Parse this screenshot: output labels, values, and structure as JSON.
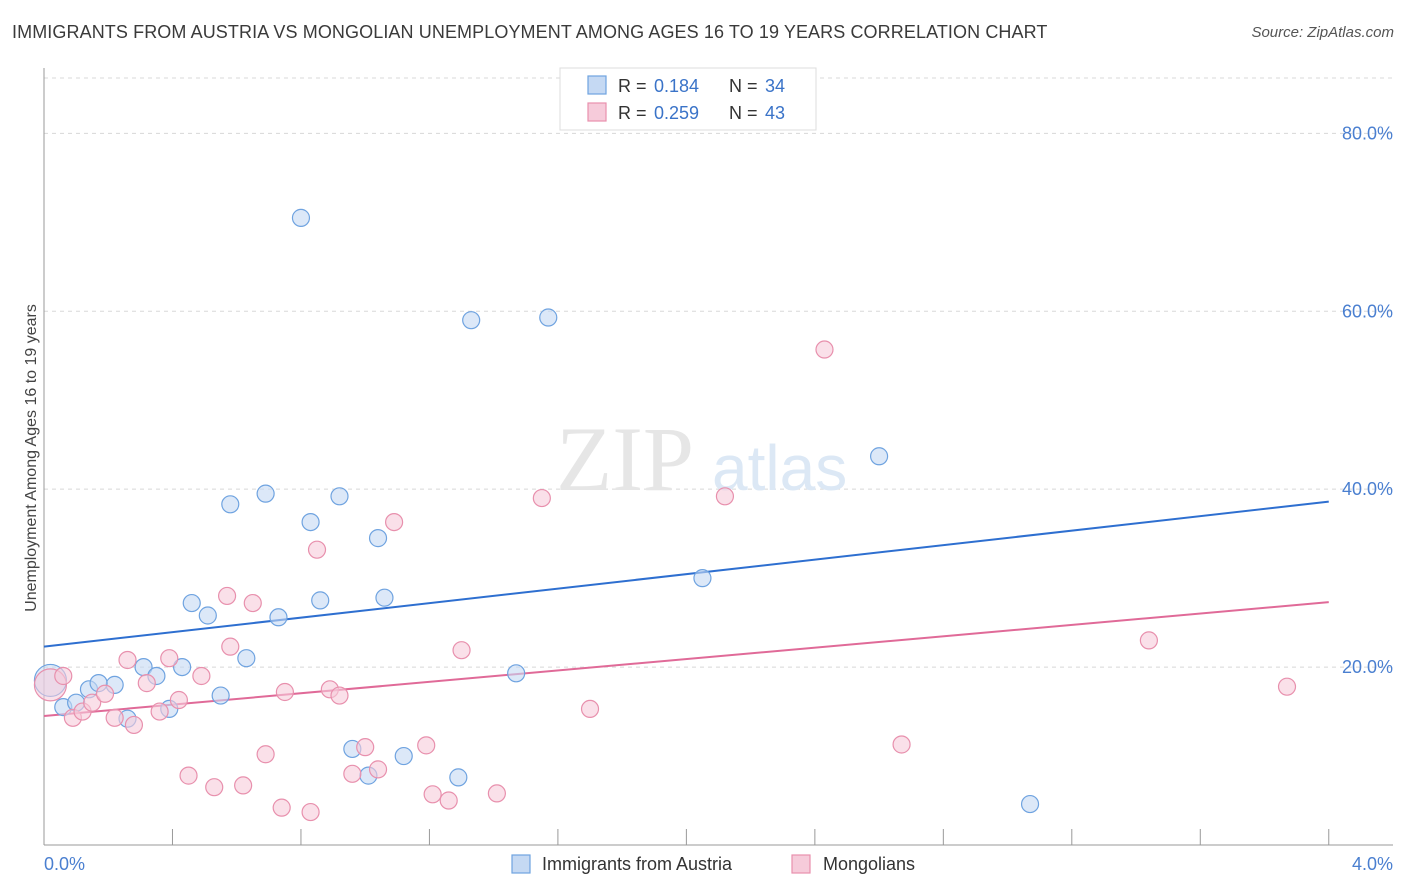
{
  "header": {
    "title": "IMMIGRANTS FROM AUSTRIA VS MONGOLIAN UNEMPLOYMENT AMONG AGES 16 TO 19 YEARS CORRELATION CHART",
    "source": "Source: ZipAtlas.com"
  },
  "watermark": {
    "zip": "ZIP",
    "atlas": "atlas"
  },
  "colors": {
    "blue": "#6fa3e0",
    "blue_fill": "#c5d9f3",
    "blue_line": "#2e6fd0",
    "pink": "#e890ad",
    "pink_fill": "#f6cbda",
    "pink_line": "#e06a98",
    "tick_text": "#4a7fd0",
    "grid": "#d8d8d8"
  },
  "legend": {
    "rows": [
      {
        "r_label": "R =",
        "r_value": "0.184",
        "n_label": "N =",
        "n_value": "34"
      },
      {
        "r_label": "R =",
        "r_value": "0.259",
        "n_label": "N =",
        "n_value": "43"
      }
    ]
  },
  "bottom_legend": [
    {
      "label": "Immigrants from Austria"
    },
    {
      "label": "Mongolians"
    }
  ],
  "chart_data": {
    "type": "scatter",
    "title": "IMMIGRANTS FROM AUSTRIA VS MONGOLIAN UNEMPLOYMENT AMONG AGES 16 TO 19 YEARS CORRELATION CHART",
    "xlabel": "",
    "ylabel": "Unemployment Among Ages 16 to 19 years",
    "xlim": [
      0,
      4.2
    ],
    "ylim": [
      0,
      86
    ],
    "x_tick_labels": [
      "0.0%",
      "4.0%"
    ],
    "y_ticks": [
      20,
      40,
      60,
      80
    ],
    "y_tick_labels": [
      "20.0%",
      "40.0%",
      "60.0%",
      "80.0%"
    ],
    "grid": true,
    "legend_position": "top-center",
    "series": [
      {
        "name": "Immigrants from Austria",
        "color": "#6fa3e0",
        "points": [
          {
            "x": 0.02,
            "y": 18.5,
            "big": true
          },
          {
            "x": 0.06,
            "y": 15.5
          },
          {
            "x": 0.1,
            "y": 16.0
          },
          {
            "x": 0.14,
            "y": 17.5
          },
          {
            "x": 0.22,
            "y": 18.0
          },
          {
            "x": 0.26,
            "y": 14.2
          },
          {
            "x": 0.31,
            "y": 20.0
          },
          {
            "x": 0.35,
            "y": 19.0
          },
          {
            "x": 0.39,
            "y": 15.3
          },
          {
            "x": 0.43,
            "y": 20.0
          },
          {
            "x": 0.46,
            "y": 27.2
          },
          {
            "x": 0.51,
            "y": 25.8
          },
          {
            "x": 0.55,
            "y": 16.8
          },
          {
            "x": 0.58,
            "y": 38.3
          },
          {
            "x": 0.63,
            "y": 21.0
          },
          {
            "x": 0.69,
            "y": 39.5
          },
          {
            "x": 0.73,
            "y": 25.6
          },
          {
            "x": 0.8,
            "y": 70.5
          },
          {
            "x": 0.83,
            "y": 36.3
          },
          {
            "x": 0.86,
            "y": 27.5
          },
          {
            "x": 0.92,
            "y": 39.2
          },
          {
            "x": 0.96,
            "y": 10.8
          },
          {
            "x": 1.01,
            "y": 7.8
          },
          {
            "x": 1.04,
            "y": 34.5
          },
          {
            "x": 1.06,
            "y": 27.8
          },
          {
            "x": 1.12,
            "y": 10.0
          },
          {
            "x": 1.29,
            "y": 7.6
          },
          {
            "x": 1.33,
            "y": 59.0
          },
          {
            "x": 1.47,
            "y": 19.3
          },
          {
            "x": 1.57,
            "y": 59.3
          },
          {
            "x": 2.05,
            "y": 30.0
          },
          {
            "x": 2.6,
            "y": 43.7
          },
          {
            "x": 3.07,
            "y": 4.6
          },
          {
            "x": 0.17,
            "y": 18.2
          }
        ],
        "trend": {
          "x": [
            0,
            4.0
          ],
          "y": [
            22.3,
            38.6
          ]
        }
      },
      {
        "name": "Mongolians",
        "color": "#e890ad",
        "points": [
          {
            "x": 0.02,
            "y": 18.0,
            "big": true
          },
          {
            "x": 0.06,
            "y": 19.0
          },
          {
            "x": 0.09,
            "y": 14.3
          },
          {
            "x": 0.12,
            "y": 15.0
          },
          {
            "x": 0.15,
            "y": 16.0
          },
          {
            "x": 0.19,
            "y": 17.0
          },
          {
            "x": 0.22,
            "y": 14.3
          },
          {
            "x": 0.26,
            "y": 20.8
          },
          {
            "x": 0.28,
            "y": 13.5
          },
          {
            "x": 0.32,
            "y": 18.2
          },
          {
            "x": 0.36,
            "y": 15.0
          },
          {
            "x": 0.39,
            "y": 21.0
          },
          {
            "x": 0.42,
            "y": 16.3
          },
          {
            "x": 0.45,
            "y": 7.8
          },
          {
            "x": 0.49,
            "y": 19.0
          },
          {
            "x": 0.53,
            "y": 6.5
          },
          {
            "x": 0.57,
            "y": 28.0
          },
          {
            "x": 0.58,
            "y": 22.3
          },
          {
            "x": 0.62,
            "y": 6.7
          },
          {
            "x": 0.65,
            "y": 27.2
          },
          {
            "x": 0.69,
            "y": 10.2
          },
          {
            "x": 0.74,
            "y": 4.2
          },
          {
            "x": 0.75,
            "y": 17.2
          },
          {
            "x": 0.83,
            "y": 3.7
          },
          {
            "x": 0.85,
            "y": 33.2
          },
          {
            "x": 0.89,
            "y": 17.5
          },
          {
            "x": 0.92,
            "y": 16.8
          },
          {
            "x": 0.96,
            "y": 8.0
          },
          {
            "x": 1.0,
            "y": 11.0
          },
          {
            "x": 1.04,
            "y": 8.5
          },
          {
            "x": 1.09,
            "y": 36.3
          },
          {
            "x": 1.19,
            "y": 11.2
          },
          {
            "x": 1.21,
            "y": 5.7
          },
          {
            "x": 1.26,
            "y": 5.0
          },
          {
            "x": 1.3,
            "y": 21.9
          },
          {
            "x": 1.41,
            "y": 5.8
          },
          {
            "x": 1.55,
            "y": 39.0
          },
          {
            "x": 1.7,
            "y": 15.3
          },
          {
            "x": 2.12,
            "y": 39.2
          },
          {
            "x": 2.43,
            "y": 55.7
          },
          {
            "x": 2.67,
            "y": 11.3
          },
          {
            "x": 3.44,
            "y": 23.0
          },
          {
            "x": 3.87,
            "y": 17.8
          }
        ],
        "trend": {
          "x": [
            0,
            4.0
          ],
          "y": [
            14.5,
            27.3
          ]
        }
      }
    ]
  }
}
